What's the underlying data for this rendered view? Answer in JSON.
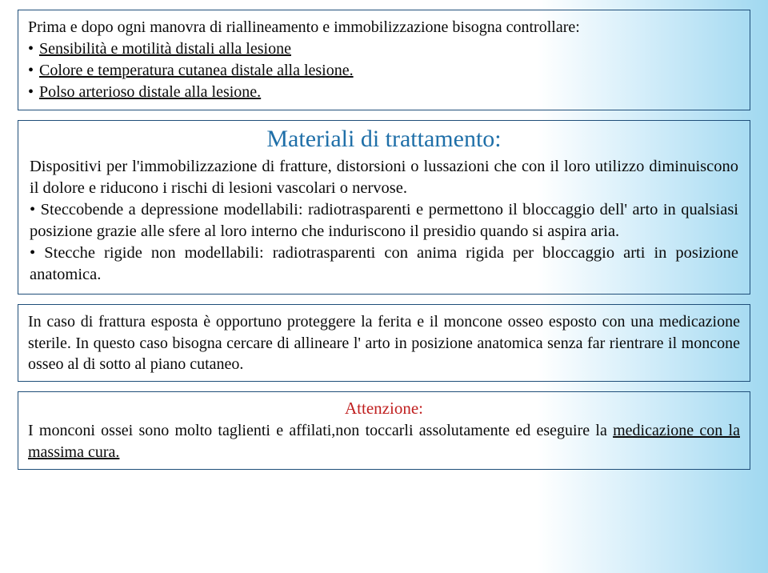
{
  "global": {
    "bg_gradient_from": "#ffffff",
    "bg_gradient_to": "#a0d8f0",
    "border_color": "#1f4e79",
    "text_color": "#0a0a0a",
    "heading_color": "#1f6fa8",
    "alert_color": "#c02020",
    "font_family": "Palatino Linotype"
  },
  "box1": {
    "intro": "Prima e dopo ogni manovra di riallineamento e immobilizzazione bisogna controllare:",
    "bullets": [
      "Sensibilità e motilità distali alla lesione",
      "Colore e temperatura cutanea distale alla lesione.",
      "Polso arterioso distale alla lesione."
    ]
  },
  "box2": {
    "heading": "Materiali di trattamento:",
    "para1": "Dispositivi per l'immobilizzazione di fratture, distorsioni o lussazioni che con il loro utilizzo diminuiscono il dolore e riducono i rischi di lesioni vascolari o nervose.",
    "bullet1": "Steccobende a depressione modellabili: radiotrasparenti e permettono il bloccaggio dell' arto in qualsiasi posizione grazie alle sfere al loro interno che induriscono il presidio quando si aspira aria.",
    "bullet2": "Stecche rigide non modellabili: radiotrasparenti con anima rigida per bloccaggio arti in posizione anatomica."
  },
  "box3": {
    "text": "In caso di frattura esposta è opportuno proteggere la ferita  e il moncone osseo esposto con una medicazione sterile. In questo caso bisogna cercare di allineare l' arto in posizione anatomica senza far rientrare il moncone osseo al di sotto al piano cutaneo."
  },
  "box4": {
    "title": "Attenzione:",
    "body_prefix": "I monconi ossei sono molto taglienti e affilati,non toccarli assolutamente ed eseguire la ",
    "body_underline": "medicazione con la massima cura."
  }
}
